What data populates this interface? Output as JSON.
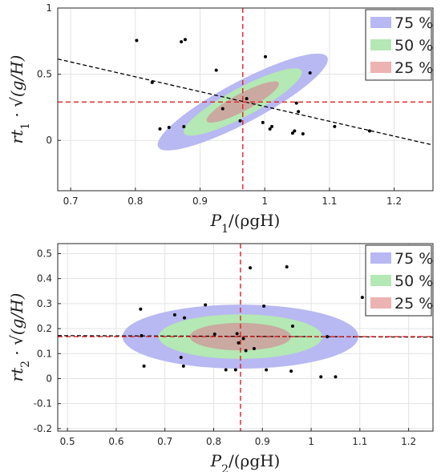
{
  "chart_data": [
    {
      "type": "scatter",
      "title": "",
      "xlabel": "P_1/(ρgH)",
      "ylabel": "rt_1 · √(g/H)",
      "xlim": [
        0.68,
        1.26
      ],
      "ylim": [
        -0.38,
        1.0
      ],
      "xticks": [
        0.7,
        0.8,
        0.9,
        1,
        1.1,
        1.2
      ],
      "yticks": [
        0,
        0.5,
        1
      ],
      "grid": true,
      "legend_placement": "top-right",
      "legend": [
        {
          "label": "75 %",
          "color": "#b8b8f2"
        },
        {
          "label": "50 %",
          "color": "#b4e8b4"
        },
        {
          "label": "25 %",
          "color": "#edb2b2"
        }
      ],
      "ellipses": [
        {
          "level": "75 %",
          "center": [
            0.966,
            0.29
          ],
          "semi_axes": [
            0.148,
            0.155
          ],
          "tilt": -28,
          "color": "#b8b8f2"
        },
        {
          "level": "50 %",
          "center": [
            0.966,
            0.29
          ],
          "semi_axes": [
            0.103,
            0.108
          ],
          "tilt": -28,
          "color": "#b4e8b4"
        },
        {
          "level": "25 %",
          "center": [
            0.966,
            0.29
          ],
          "semi_axes": [
            0.063,
            0.066
          ],
          "tilt": -28,
          "color": "#c9a9a0"
        }
      ],
      "mean_lines": {
        "x": 0.966,
        "y": 0.29,
        "color": "#e02020"
      },
      "fit_line": {
        "x": [
          0.68,
          1.26
        ],
        "y": [
          0.615,
          -0.035
        ],
        "color": "#000000"
      },
      "points": [
        {
          "x": 0.802,
          "y": 0.755
        },
        {
          "x": 0.826,
          "y": 0.438
        },
        {
          "x": 0.838,
          "y": 0.087
        },
        {
          "x": 0.852,
          "y": 0.098
        },
        {
          "x": 0.871,
          "y": 0.745
        },
        {
          "x": 0.877,
          "y": 0.762
        },
        {
          "x": 0.875,
          "y": 0.104
        },
        {
          "x": 0.925,
          "y": 0.53
        },
        {
          "x": 0.935,
          "y": 0.24
        },
        {
          "x": 0.962,
          "y": 0.148
        },
        {
          "x": 0.972,
          "y": 0.315
        },
        {
          "x": 0.997,
          "y": 0.135
        },
        {
          "x": 1.001,
          "y": 0.632
        },
        {
          "x": 1.008,
          "y": 0.086
        },
        {
          "x": 1.011,
          "y": 0.105
        },
        {
          "x": 1.043,
          "y": 0.055
        },
        {
          "x": 1.046,
          "y": 0.072
        },
        {
          "x": 1.049,
          "y": 0.282
        },
        {
          "x": 1.052,
          "y": 0.218
        },
        {
          "x": 1.059,
          "y": 0.05
        },
        {
          "x": 1.07,
          "y": 0.51
        },
        {
          "x": 1.108,
          "y": 0.105
        },
        {
          "x": 1.162,
          "y": 0.072
        }
      ]
    },
    {
      "type": "scatter",
      "title": "",
      "xlabel": "P_2/(ρgH)",
      "ylabel": "rt_2 · √(g/H)",
      "xlim": [
        0.48,
        1.25
      ],
      "ylim": [
        -0.21,
        0.54
      ],
      "xticks": [
        0.5,
        0.6,
        0.7,
        0.8,
        0.9,
        1,
        1.1,
        1.2
      ],
      "yticks": [
        -0.2,
        -0.1,
        0,
        0.1,
        0.2,
        0.3,
        0.4,
        0.5
      ],
      "grid": true,
      "legend_placement": "top-right",
      "legend": [
        {
          "label": "75 %",
          "color": "#b8b8f2"
        },
        {
          "label": "50 %",
          "color": "#b4e8b4"
        },
        {
          "label": "25 %",
          "color": "#edb2b2"
        }
      ],
      "ellipses": [
        {
          "level": "75 %",
          "center": [
            0.855,
            0.168
          ],
          "semi_axes": [
            0.242,
            0.128
          ],
          "tilt": 0,
          "color": "#b8b8f2"
        },
        {
          "level": "50 %",
          "center": [
            0.855,
            0.168
          ],
          "semi_axes": [
            0.168,
            0.089
          ],
          "tilt": 0,
          "color": "#b4e8b4"
        },
        {
          "level": "25 %",
          "center": [
            0.855,
            0.168
          ],
          "semi_axes": [
            0.104,
            0.055
          ],
          "tilt": 0,
          "color": "#c9a9a0"
        }
      ],
      "mean_lines": {
        "x": 0.855,
        "y": 0.168,
        "color": "#e02020"
      },
      "fit_line": {
        "x": [
          0.48,
          1.25
        ],
        "y": [
          0.172,
          0.166
        ],
        "color": "#000000"
      },
      "points": [
        {
          "x": 0.65,
          "y": 0.278
        },
        {
          "x": 0.652,
          "y": 0.172
        },
        {
          "x": 0.657,
          "y": 0.05
        },
        {
          "x": 0.72,
          "y": 0.255
        },
        {
          "x": 0.733,
          "y": 0.085
        },
        {
          "x": 0.738,
          "y": 0.05
        },
        {
          "x": 0.74,
          "y": 0.243
        },
        {
          "x": 0.783,
          "y": 0.295
        },
        {
          "x": 0.802,
          "y": 0.178
        },
        {
          "x": 0.825,
          "y": 0.035
        },
        {
          "x": 0.845,
          "y": 0.035
        },
        {
          "x": 0.848,
          "y": 0.18
        },
        {
          "x": 0.851,
          "y": 0.143
        },
        {
          "x": 0.861,
          "y": 0.16
        },
        {
          "x": 0.866,
          "y": 0.112
        },
        {
          "x": 0.875,
          "y": 0.443
        },
        {
          "x": 0.883,
          "y": 0.12
        },
        {
          "x": 0.903,
          "y": 0.29
        },
        {
          "x": 0.908,
          "y": 0.035
        },
        {
          "x": 0.95,
          "y": 0.447
        },
        {
          "x": 0.959,
          "y": 0.03
        },
        {
          "x": 0.962,
          "y": 0.21
        },
        {
          "x": 1.02,
          "y": 0.007
        },
        {
          "x": 1.033,
          "y": 0.168
        },
        {
          "x": 1.05,
          "y": 0.007
        },
        {
          "x": 1.105,
          "y": 0.325
        }
      ]
    }
  ]
}
